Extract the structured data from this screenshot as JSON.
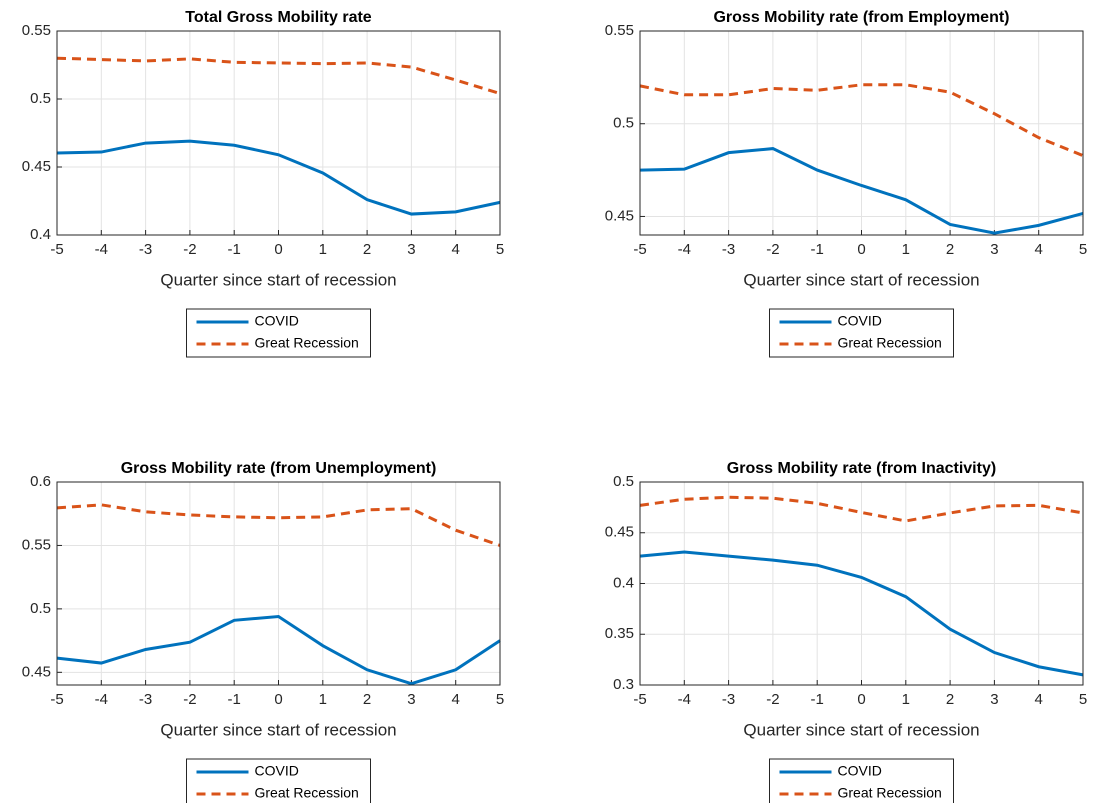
{
  "chart_data": [
    {
      "type": "line",
      "title": "Total Gross Mobility rate",
      "xlabel": "Quarter since start of recession",
      "x": [
        -5,
        -4,
        -3,
        -2,
        -1,
        0,
        1,
        2,
        3,
        4,
        5
      ],
      "xlim": [
        -5,
        5
      ],
      "xticks": [
        -5,
        -4,
        -3,
        -2,
        -1,
        0,
        1,
        2,
        3,
        4,
        5
      ],
      "ylim": [
        0.4,
        0.55
      ],
      "yticks": [
        0.4,
        0.45,
        0.5,
        0.55
      ],
      "grid": true,
      "legend": "south",
      "series": [
        {
          "name": "COVID",
          "color": "#0072bd",
          "style": "solid",
          "values": [
            0.4603,
            0.461,
            0.4676,
            0.469,
            0.466,
            0.459,
            0.4456,
            0.426,
            0.4154,
            0.417,
            0.424
          ]
        },
        {
          "name": "Great Recession",
          "color": "#d95319",
          "style": "dashed",
          "values": [
            0.53,
            0.529,
            0.528,
            0.5295,
            0.527,
            0.5265,
            0.526,
            0.5265,
            0.5235,
            0.514,
            0.504
          ]
        }
      ]
    },
    {
      "type": "line",
      "title": "Gross Mobility rate (from Employment)",
      "xlabel": "Quarter since start of recession",
      "x": [
        -5,
        -4,
        -3,
        -2,
        -1,
        0,
        1,
        2,
        3,
        4,
        5
      ],
      "xlim": [
        -5,
        5
      ],
      "xticks": [
        -5,
        -4,
        -3,
        -2,
        -1,
        0,
        1,
        2,
        3,
        4,
        5
      ],
      "ylim": [
        0.44,
        0.55
      ],
      "yticks": [
        0.45,
        0.5,
        0.55
      ],
      "grid": true,
      "legend": "south",
      "series": [
        {
          "name": "COVID",
          "color": "#0072bd",
          "style": "solid",
          "values": [
            0.475,
            0.4755,
            0.4844,
            0.4866,
            0.475,
            0.4667,
            0.459,
            0.4457,
            0.441,
            0.4452,
            0.4516
          ]
        },
        {
          "name": "Great Recession",
          "color": "#d95319",
          "style": "dashed",
          "values": [
            0.5204,
            0.5156,
            0.5156,
            0.519,
            0.518,
            0.521,
            0.521,
            0.517,
            0.5054,
            0.4925,
            0.4828
          ]
        }
      ]
    },
    {
      "type": "line",
      "title": "Gross Mobility rate (from Unemployment)",
      "xlabel": "Quarter since start of recession",
      "x": [
        -5,
        -4,
        -3,
        -2,
        -1,
        0,
        1,
        2,
        3,
        4,
        5
      ],
      "xlim": [
        -5,
        5
      ],
      "xticks": [
        -5,
        -4,
        -3,
        -2,
        -1,
        0,
        1,
        2,
        3,
        4,
        5
      ],
      "ylim": [
        0.44,
        0.6
      ],
      "yticks": [
        0.45,
        0.5,
        0.55,
        0.6
      ],
      "grid": true,
      "legend": "south",
      "series": [
        {
          "name": "COVID",
          "color": "#0072bd",
          "style": "solid",
          "values": [
            0.4612,
            0.4573,
            0.468,
            0.4737,
            0.491,
            0.494,
            0.471,
            0.452,
            0.441,
            0.452,
            0.475
          ]
        },
        {
          "name": "Great Recession",
          "color": "#d95319",
          "style": "dashed",
          "values": [
            0.5796,
            0.582,
            0.5765,
            0.574,
            0.5725,
            0.5718,
            0.5725,
            0.578,
            0.579,
            0.562,
            0.55
          ]
        }
      ]
    },
    {
      "type": "line",
      "title": "Gross Mobility rate (from Inactivity)",
      "xlabel": "Quarter since start of recession",
      "x": [
        -5,
        -4,
        -3,
        -2,
        -1,
        0,
        1,
        2,
        3,
        4,
        5
      ],
      "xlim": [
        -5,
        5
      ],
      "xticks": [
        -5,
        -4,
        -3,
        -2,
        -1,
        0,
        1,
        2,
        3,
        4,
        5
      ],
      "ylim": [
        0.3,
        0.5
      ],
      "yticks": [
        0.3,
        0.35,
        0.4,
        0.45,
        0.5
      ],
      "grid": true,
      "legend": "south",
      "series": [
        {
          "name": "COVID",
          "color": "#0072bd",
          "style": "solid",
          "values": [
            0.427,
            0.431,
            0.427,
            0.423,
            0.418,
            0.406,
            0.387,
            0.355,
            0.332,
            0.318,
            0.31
          ]
        },
        {
          "name": "Great Recession",
          "color": "#d95319",
          "style": "dashed",
          "values": [
            0.477,
            0.483,
            0.485,
            0.484,
            0.479,
            0.47,
            0.4616,
            0.4695,
            0.4764,
            0.477,
            0.4695
          ]
        }
      ]
    }
  ]
}
